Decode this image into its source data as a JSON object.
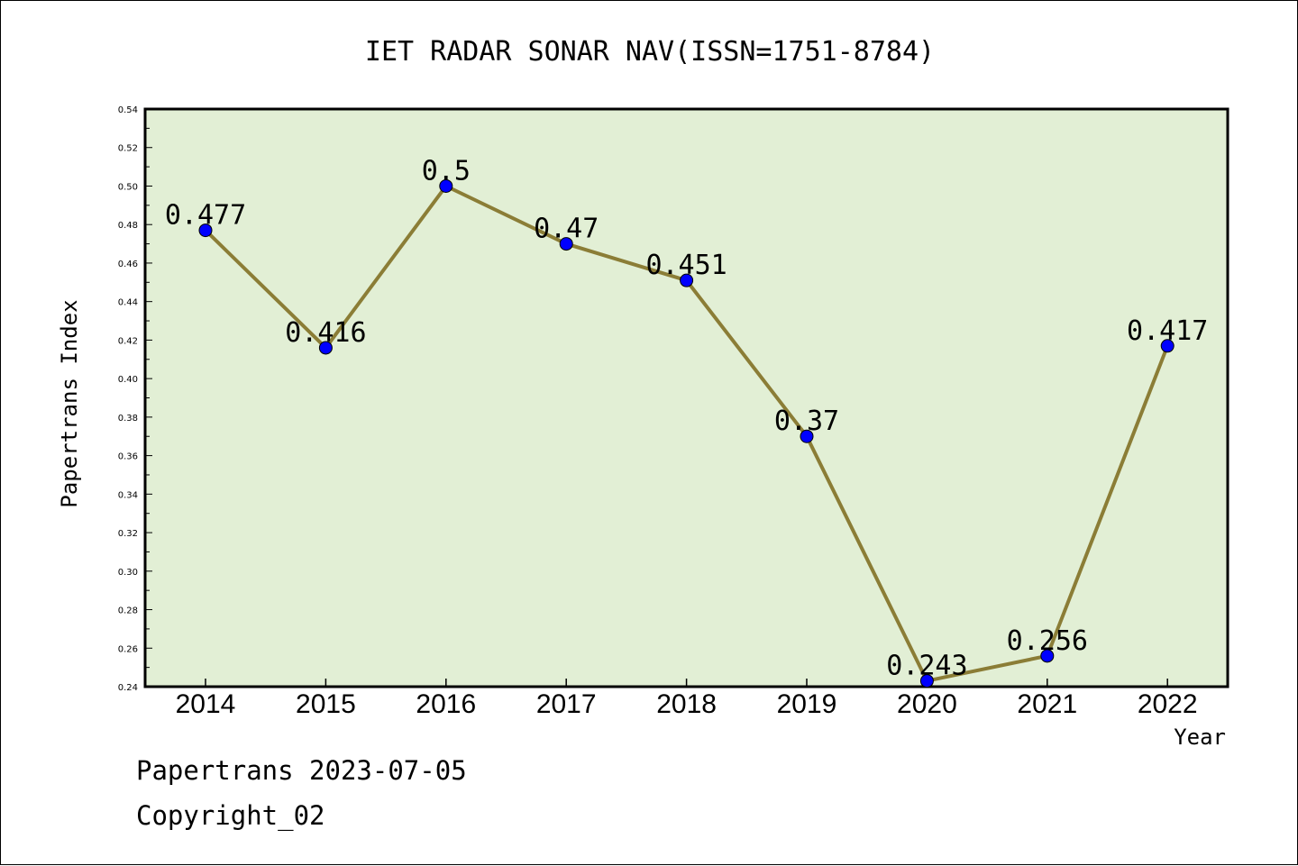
{
  "chart_data": {
    "type": "line",
    "title": "IET RADAR SONAR NAV(ISSN=1751-8784)",
    "xlabel": "Year",
    "ylabel": "Papertrans Index",
    "categories": [
      "2014",
      "2015",
      "2016",
      "2017",
      "2018",
      "2019",
      "2020",
      "2021",
      "2022"
    ],
    "series": [
      {
        "values": [
          0.477,
          0.416,
          0.5,
          0.47,
          0.451,
          0.37,
          0.243,
          0.256,
          0.417
        ],
        "data_labels": [
          "0.477",
          "0.416",
          "0.5",
          "0.47",
          "0.451",
          "0.37",
          "0.243",
          "0.256",
          "0.417"
        ]
      }
    ],
    "ylim": [
      0.24,
      0.54
    ],
    "yticks": [
      "0.24",
      "0.26",
      "0.28",
      "0.30",
      "0.32",
      "0.34",
      "0.36",
      "0.38",
      "0.40",
      "0.42",
      "0.44",
      "0.46",
      "0.48",
      "0.50",
      "0.52",
      "0.54"
    ],
    "grid": false,
    "legend": "none"
  },
  "colors": {
    "plot_background": "#e2efd5",
    "line": "#8b7d36",
    "marker": "#0000ff"
  },
  "footer": {
    "line1": "Papertrans 2023-07-05",
    "line2": "Copyright_02"
  }
}
